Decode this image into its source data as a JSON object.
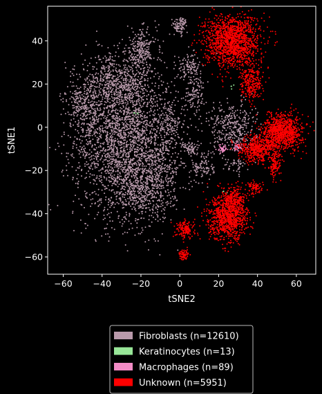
{
  "chart_data": {
    "type": "scatter",
    "title": "",
    "xlabel": "tSNE2",
    "ylabel": "tSNE1",
    "xlim": [
      -68,
      70
    ],
    "ylim": [
      -68,
      56
    ],
    "xticks": [
      -60,
      -40,
      -20,
      0,
      20,
      40,
      60
    ],
    "yticks": [
      -60,
      -40,
      -20,
      0,
      20,
      40
    ],
    "grid": false,
    "legend_position": "bottom-center",
    "background": "#000000",
    "series": [
      {
        "name": "Fibroblasts (n=12610)",
        "color": "#b99aab",
        "clusters": [
          {
            "cx": -28,
            "cy": -5,
            "sx": 13,
            "sy": 18,
            "n": 2600
          },
          {
            "cx": -20,
            "cy": 35,
            "sx": 4,
            "sy": 5,
            "n": 250
          },
          {
            "cx": -35,
            "cy": 20,
            "sx": 8,
            "sy": 6,
            "n": 400
          },
          {
            "cx": -50,
            "cy": 10,
            "sx": 4,
            "sy": 5,
            "n": 200
          },
          {
            "cx": -18,
            "cy": -30,
            "sx": 8,
            "sy": 7,
            "n": 400
          },
          {
            "cx": -10,
            "cy": -20,
            "sx": 4,
            "sy": 6,
            "n": 150
          },
          {
            "cx": -5,
            "cy": 0,
            "sx": 3,
            "sy": 6,
            "n": 120
          },
          {
            "cx": 0,
            "cy": 47,
            "sx": 2,
            "sy": 2,
            "n": 90
          },
          {
            "cx": 5,
            "cy": 28,
            "sx": 3,
            "sy": 3,
            "n": 120
          },
          {
            "cx": 8,
            "cy": 15,
            "sx": 3,
            "sy": 4,
            "n": 110
          },
          {
            "cx": 27,
            "cy": 0,
            "sx": 6,
            "sy": 6,
            "n": 350
          },
          {
            "cx": 12,
            "cy": -18,
            "sx": 3,
            "sy": 4,
            "n": 110
          },
          {
            "cx": 6,
            "cy": -10,
            "sx": 2,
            "sy": 2,
            "n": 60
          },
          {
            "cx": 29,
            "cy": -18,
            "sx": 3,
            "sy": 2,
            "n": 40
          }
        ]
      },
      {
        "name": "Keratinocytes (n=13)",
        "color": "#98e698",
        "clusters": [
          {
            "cx": -23,
            "cy": 7,
            "sx": 1,
            "sy": 1,
            "n": 4
          },
          {
            "cx": 27,
            "cy": 19,
            "sx": 1,
            "sy": 1,
            "n": 4
          },
          {
            "cx": 24,
            "cy": -30,
            "sx": 1,
            "sy": 1,
            "n": 3
          }
        ]
      },
      {
        "name": "Macrophages (n=89)",
        "color": "#f38cc6",
        "clusters": [
          {
            "cx": 22,
            "cy": -10,
            "sx": 1.2,
            "sy": 1,
            "n": 40
          },
          {
            "cx": 30,
            "cy": -9,
            "sx": 1.2,
            "sy": 1,
            "n": 40
          }
        ]
      },
      {
        "name": "Unknown (n=5951)",
        "color": "#ff0000",
        "clusters": [
          {
            "cx": 27,
            "cy": 40,
            "sx": 7,
            "sy": 6,
            "n": 1400
          },
          {
            "cx": 37,
            "cy": 20,
            "sx": 3,
            "sy": 4,
            "n": 250
          },
          {
            "cx": 53,
            "cy": -2,
            "sx": 5,
            "sy": 4,
            "n": 900
          },
          {
            "cx": 40,
            "cy": -10,
            "sx": 5,
            "sy": 3,
            "n": 500
          },
          {
            "cx": 49,
            "cy": -18,
            "sx": 1.5,
            "sy": 3,
            "n": 120
          },
          {
            "cx": 25,
            "cy": -42,
            "sx": 5,
            "sy": 5,
            "n": 900
          },
          {
            "cx": 28,
            "cy": -33,
            "sx": 3,
            "sy": 3,
            "n": 200
          },
          {
            "cx": 3,
            "cy": -47,
            "sx": 2.5,
            "sy": 2,
            "n": 150
          },
          {
            "cx": 2,
            "cy": -59,
            "sx": 1.3,
            "sy": 1.3,
            "n": 70
          },
          {
            "cx": 39,
            "cy": -28,
            "sx": 2,
            "sy": 1.5,
            "n": 80
          }
        ]
      }
    ]
  }
}
